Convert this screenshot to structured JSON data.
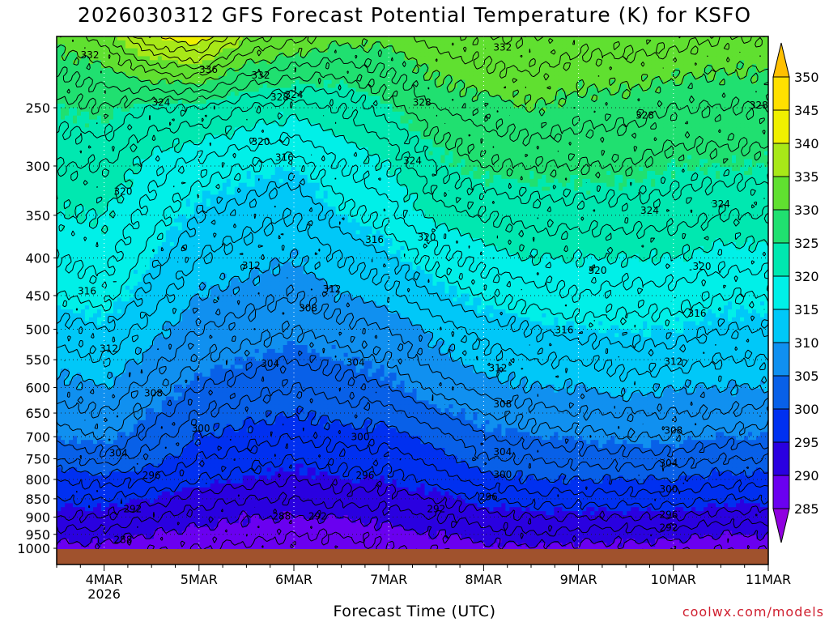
{
  "title": "2026030312 GFS Forecast Potential Temperature (K) for KSFO",
  "xlabel": "Forecast Time (UTC)",
  "credit": "coolwx.com/models",
  "chart_data": {
    "type": "heatmap",
    "title": "2026030312 GFS Forecast Potential Temperature (K) for KSFO",
    "xlabel": "Forecast Time (UTC)",
    "ylabel": "",
    "x_ticks": [
      {
        "label": "4MAR",
        "sublabel": "2026",
        "day": 4
      },
      {
        "label": "5MAR",
        "sublabel": "",
        "day": 5
      },
      {
        "label": "6MAR",
        "sublabel": "",
        "day": 6
      },
      {
        "label": "7MAR",
        "sublabel": "",
        "day": 7
      },
      {
        "label": "8MAR",
        "sublabel": "",
        "day": 8
      },
      {
        "label": "9MAR",
        "sublabel": "",
        "day": 9
      },
      {
        "label": "10MAR",
        "sublabel": "",
        "day": 10
      },
      {
        "label": "11MAR",
        "sublabel": "",
        "day": 11
      }
    ],
    "x_range_day": [
      3.5,
      11.0
    ],
    "y_range_hpa": [
      200,
      1000
    ],
    "y_axis_scale": "log-pressure",
    "y_ticks": [
      250,
      300,
      350,
      400,
      450,
      500,
      550,
      600,
      650,
      700,
      750,
      800,
      850,
      900,
      950,
      1000
    ],
    "gridlines": "dotted",
    "colorbar": {
      "levels": [
        285,
        290,
        295,
        300,
        305,
        310,
        315,
        320,
        325,
        330,
        335,
        340,
        345,
        350
      ],
      "colors": [
        "#9000e0",
        "#6a00f0",
        "#2a00e0",
        "#0030f0",
        "#0860e8",
        "#1090f0",
        "#00c8f8",
        "#00f0e8",
        "#00e8b0",
        "#20e070",
        "#60e030",
        "#a8e818",
        "#f0f000",
        "#ffe000",
        "#ffc000"
      ],
      "placement": "right"
    },
    "contour_interval_k": 2,
    "ground_color": "#a0522d",
    "profiles": [
      {
        "day": 3.5,
        "theta_at": {
          "1000": 289,
          "950": 291,
          "900": 294,
          "850": 296,
          "800": 298,
          "750": 302,
          "700": 305,
          "650": 307,
          "600": 309,
          "550": 311,
          "500": 313,
          "450": 316,
          "400": 318,
          "350": 320,
          "300": 322,
          "250": 325,
          "200": 331
        }
      },
      {
        "day": 4.0,
        "theta_at": {
          "1000": 289,
          "950": 291,
          "900": 294,
          "850": 296,
          "800": 299,
          "750": 303,
          "700": 306,
          "650": 308,
          "600": 310,
          "550": 312,
          "500": 314,
          "450": 317,
          "400": 319,
          "350": 320,
          "300": 322,
          "250": 326,
          "200": 333
        }
      },
      {
        "day": 4.5,
        "theta_at": {
          "1000": 288,
          "950": 290,
          "900": 292,
          "850": 295,
          "800": 298,
          "750": 301,
          "700": 303,
          "650": 305,
          "600": 307,
          "550": 309,
          "500": 311,
          "450": 313,
          "400": 315,
          "350": 317,
          "300": 319,
          "250": 324,
          "200": 340
        }
      },
      {
        "day": 5.0,
        "theta_at": {
          "1000": 288,
          "950": 289,
          "900": 291,
          "850": 293,
          "800": 296,
          "750": 298,
          "700": 300,
          "650": 302,
          "600": 304,
          "550": 306,
          "500": 308,
          "450": 310,
          "400": 312,
          "350": 314,
          "300": 317,
          "250": 324,
          "200": 342
        }
      },
      {
        "day": 5.5,
        "theta_at": {
          "1000": 287,
          "950": 289,
          "900": 290,
          "850": 292,
          "800": 295,
          "750": 297,
          "700": 299,
          "650": 301,
          "600": 303,
          "550": 305,
          "500": 307,
          "450": 309,
          "400": 311,
          "350": 313,
          "300": 316,
          "250": 322,
          "200": 335
        }
      },
      {
        "day": 6.0,
        "theta_at": {
          "1000": 287,
          "950": 288,
          "900": 290,
          "850": 292,
          "800": 294,
          "750": 296,
          "700": 298,
          "650": 300,
          "600": 302,
          "550": 304,
          "500": 306,
          "450": 308,
          "400": 310,
          "350": 312,
          "300": 315,
          "250": 321,
          "200": 333
        }
      },
      {
        "day": 6.5,
        "theta_at": {
          "1000": 287,
          "950": 288,
          "900": 290,
          "850": 293,
          "800": 295,
          "750": 297,
          "700": 299,
          "650": 301,
          "600": 303,
          "550": 305,
          "500": 307,
          "450": 310,
          "400": 312,
          "350": 315,
          "300": 318,
          "250": 322,
          "200": 331
        }
      },
      {
        "day": 7.0,
        "theta_at": {
          "1000": 288,
          "950": 289,
          "900": 291,
          "850": 293,
          "800": 295,
          "750": 297,
          "700": 299,
          "650": 301,
          "600": 304,
          "550": 306,
          "500": 308,
          "450": 311,
          "400": 314,
          "350": 317,
          "300": 320,
          "250": 325,
          "200": 331
        }
      },
      {
        "day": 7.5,
        "theta_at": {
          "1000": 288,
          "950": 290,
          "900": 292,
          "850": 294,
          "800": 297,
          "750": 299,
          "700": 301,
          "650": 304,
          "600": 307,
          "550": 309,
          "500": 311,
          "450": 314,
          "400": 317,
          "350": 321,
          "300": 324,
          "250": 328,
          "200": 333
        }
      },
      {
        "day": 8.0,
        "theta_at": {
          "1000": 289,
          "950": 291,
          "900": 293,
          "850": 296,
          "800": 299,
          "750": 302,
          "700": 304,
          "650": 306,
          "600": 309,
          "550": 311,
          "500": 313,
          "450": 316,
          "400": 319,
          "350": 322,
          "300": 326,
          "250": 329,
          "200": 334
        }
      },
      {
        "day": 8.5,
        "theta_at": {
          "1000": 289,
          "950": 292,
          "900": 294,
          "850": 297,
          "800": 300,
          "750": 302,
          "700": 305,
          "650": 307,
          "600": 310,
          "550": 312,
          "500": 314,
          "450": 317,
          "400": 320,
          "350": 323,
          "300": 326,
          "250": 330,
          "200": 334
        }
      },
      {
        "day": 9.0,
        "theta_at": {
          "1000": 289,
          "950": 291,
          "900": 294,
          "850": 297,
          "800": 300,
          "750": 303,
          "700": 305,
          "650": 308,
          "600": 310,
          "550": 312,
          "500": 315,
          "450": 318,
          "400": 320,
          "350": 323,
          "300": 326,
          "250": 329,
          "200": 333
        }
      },
      {
        "day": 9.5,
        "theta_at": {
          "1000": 289,
          "950": 291,
          "900": 294,
          "850": 297,
          "800": 300,
          "750": 303,
          "700": 306,
          "650": 308,
          "600": 311,
          "550": 313,
          "500": 315,
          "450": 317,
          "400": 320,
          "350": 323,
          "300": 326,
          "250": 329,
          "200": 333
        }
      },
      {
        "day": 10.0,
        "theta_at": {
          "1000": 288,
          "950": 291,
          "900": 294,
          "850": 297,
          "800": 300,
          "750": 303,
          "700": 306,
          "650": 308,
          "600": 310,
          "550": 313,
          "500": 315,
          "450": 317,
          "400": 320,
          "350": 323,
          "300": 325,
          "250": 328,
          "200": 333
        }
      },
      {
        "day": 10.5,
        "theta_at": {
          "1000": 288,
          "950": 290,
          "900": 293,
          "850": 296,
          "800": 299,
          "750": 302,
          "700": 305,
          "650": 308,
          "600": 310,
          "550": 312,
          "500": 314,
          "450": 316,
          "400": 319,
          "350": 322,
          "300": 325,
          "250": 328,
          "200": 332
        }
      },
      {
        "day": 11.0,
        "theta_at": {
          "1000": 288,
          "950": 290,
          "900": 293,
          "850": 296,
          "800": 299,
          "750": 302,
          "700": 305,
          "650": 307,
          "600": 310,
          "550": 312,
          "500": 314,
          "450": 316,
          "400": 319,
          "350": 322,
          "300": 325,
          "250": 328,
          "200": 332
        }
      }
    ],
    "contour_labels": [
      {
        "text": "332",
        "day": 3.85,
        "p": 212
      },
      {
        "text": "336",
        "day": 5.1,
        "p": 222
      },
      {
        "text": "332",
        "day": 5.65,
        "p": 226
      },
      {
        "text": "328",
        "day": 5.85,
        "p": 242
      },
      {
        "text": "324",
        "day": 6.0,
        "p": 240
      },
      {
        "text": "324",
        "day": 4.6,
        "p": 246
      },
      {
        "text": "332",
        "day": 8.2,
        "p": 207
      },
      {
        "text": "328",
        "day": 7.35,
        "p": 246
      },
      {
        "text": "328",
        "day": 9.7,
        "p": 256
      },
      {
        "text": "328",
        "day": 10.9,
        "p": 248
      },
      {
        "text": "320",
        "day": 5.65,
        "p": 278
      },
      {
        "text": "316",
        "day": 5.9,
        "p": 292
      },
      {
        "text": "324",
        "day": 7.25,
        "p": 295
      },
      {
        "text": "320",
        "day": 4.2,
        "p": 325
      },
      {
        "text": "324",
        "day": 9.75,
        "p": 345
      },
      {
        "text": "324",
        "day": 10.5,
        "p": 338
      },
      {
        "text": "316",
        "day": 6.85,
        "p": 378
      },
      {
        "text": "320",
        "day": 7.4,
        "p": 375
      },
      {
        "text": "320",
        "day": 9.2,
        "p": 416
      },
      {
        "text": "320",
        "day": 10.3,
        "p": 411
      },
      {
        "text": "312",
        "day": 5.55,
        "p": 410
      },
      {
        "text": "316",
        "day": 3.82,
        "p": 444
      },
      {
        "text": "312",
        "day": 6.4,
        "p": 441
      },
      {
        "text": "308",
        "day": 6.15,
        "p": 468
      },
      {
        "text": "316",
        "day": 10.25,
        "p": 476
      },
      {
        "text": "316",
        "day": 8.85,
        "p": 501
      },
      {
        "text": "312",
        "day": 4.05,
        "p": 531
      },
      {
        "text": "304",
        "day": 5.75,
        "p": 557
      },
      {
        "text": "304",
        "day": 6.65,
        "p": 555
      },
      {
        "text": "312",
        "day": 10.0,
        "p": 553
      },
      {
        "text": "312",
        "day": 8.15,
        "p": 565
      },
      {
        "text": "308",
        "day": 4.52,
        "p": 611
      },
      {
        "text": "308",
        "day": 8.2,
        "p": 632
      },
      {
        "text": "300",
        "day": 5.02,
        "p": 682
      },
      {
        "text": "300",
        "day": 6.7,
        "p": 700
      },
      {
        "text": "308",
        "day": 10.0,
        "p": 686
      },
      {
        "text": "304",
        "day": 4.15,
        "p": 737
      },
      {
        "text": "304",
        "day": 8.2,
        "p": 734
      },
      {
        "text": "304",
        "day": 9.95,
        "p": 761
      },
      {
        "text": "300",
        "day": 8.2,
        "p": 788
      },
      {
        "text": "296",
        "day": 4.5,
        "p": 790
      },
      {
        "text": "296",
        "day": 6.75,
        "p": 790
      },
      {
        "text": "300",
        "day": 9.95,
        "p": 825
      },
      {
        "text": "296",
        "day": 8.05,
        "p": 845
      },
      {
        "text": "292",
        "day": 4.3,
        "p": 878
      },
      {
        "text": "292",
        "day": 7.5,
        "p": 878
      },
      {
        "text": "296",
        "day": 9.95,
        "p": 893
      },
      {
        "text": "288",
        "day": 5.87,
        "p": 898
      },
      {
        "text": "292",
        "day": 6.25,
        "p": 898
      },
      {
        "text": "292",
        "day": 9.95,
        "p": 930
      },
      {
        "text": "288",
        "day": 4.2,
        "p": 966
      }
    ]
  }
}
